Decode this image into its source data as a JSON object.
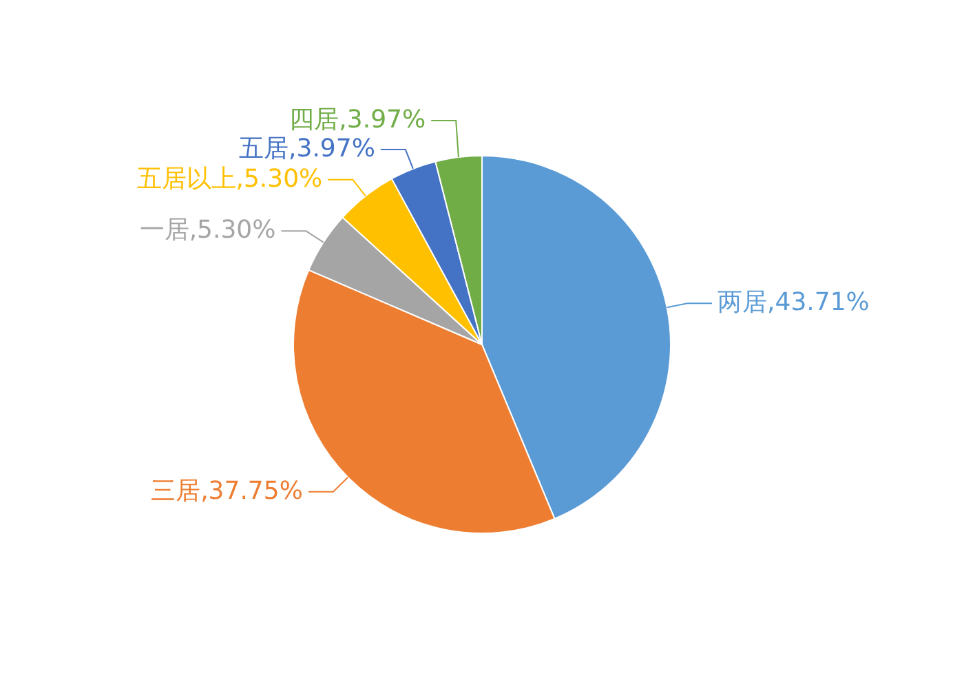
{
  "chart_data": {
    "type": "pie",
    "categories": [
      "两居",
      "三居",
      "一居",
      "五居以上",
      "五居",
      "四居"
    ],
    "values": [
      43.71,
      37.75,
      5.3,
      5.3,
      3.97,
      3.97
    ],
    "colors": [
      "#5b9bd5",
      "#ed7d31",
      "#a5a5a5",
      "#ffc000",
      "#4472c4",
      "#70ad47"
    ],
    "value_labels": [
      ",43.71%",
      ",37.75%",
      ",5.30%",
      ",5.30%",
      ",3.97%",
      ",3.97%"
    ],
    "legend": false
  }
}
